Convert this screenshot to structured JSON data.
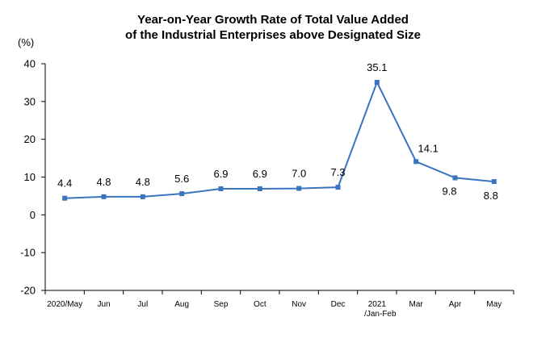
{
  "chart_data": {
    "type": "line",
    "title_lines": [
      "Year-on-Year Growth Rate of Total Value Added",
      "of the Industrial Enterprises above Designated Size"
    ],
    "ylabel": "(%)",
    "categories": [
      [
        "2020/May"
      ],
      [
        "Jun"
      ],
      [
        "Jul"
      ],
      [
        "Aug"
      ],
      [
        "Sep"
      ],
      [
        "Oct"
      ],
      [
        "Nov"
      ],
      [
        "Dec"
      ],
      [
        "2021",
        "/Jan-Feb"
      ],
      [
        "Mar"
      ],
      [
        "Apr"
      ],
      [
        "May"
      ]
    ],
    "values": [
      4.4,
      4.8,
      4.8,
      5.6,
      6.9,
      6.9,
      7.0,
      7.3,
      35.1,
      14.1,
      9.8,
      8.8
    ],
    "data_labels": [
      "4.4",
      "4.8",
      "4.8",
      "5.6",
      "6.9",
      "6.9",
      "7.0",
      "7.3",
      "35.1",
      "14.1",
      "9.8",
      "8.8"
    ],
    "ylim": [
      -20,
      40
    ],
    "yticks": [
      "40",
      "30",
      "20",
      "10",
      "0",
      "-10",
      "-20"
    ],
    "ytick_values": [
      40,
      30,
      20,
      10,
      0,
      -10,
      -20
    ],
    "grid": false,
    "legend": "none",
    "line_color": "#3A74BE",
    "marker_color": "#3A74BE",
    "marker_shape": "square"
  }
}
